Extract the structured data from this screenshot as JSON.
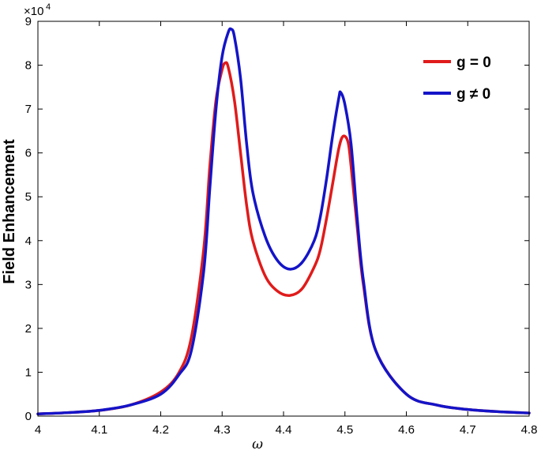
{
  "chart_data": {
    "type": "line",
    "title": "",
    "xlabel": "ω",
    "ylabel": "Field Enhancement",
    "y_exponent_base": "×10",
    "y_exponent_power": "4",
    "xlim": [
      4,
      4.8
    ],
    "ylim": [
      0,
      90000
    ],
    "x_ticks": [
      4,
      4.1,
      4.2,
      4.3,
      4.4,
      4.5,
      4.6,
      4.7,
      4.8
    ],
    "x_tick_labels": [
      "4",
      "4.1",
      "4.2",
      "4.3",
      "4.4",
      "4.5",
      "4.6",
      "4.7",
      "4.8"
    ],
    "y_ticks": [
      0,
      10000,
      20000,
      30000,
      40000,
      50000,
      60000,
      70000,
      80000,
      90000
    ],
    "y_tick_labels": [
      "0",
      "1",
      "2",
      "3",
      "4",
      "5",
      "6",
      "7",
      "8",
      "9"
    ],
    "grid": false,
    "legend_position": "top-right",
    "series": [
      {
        "name": "g = 0",
        "color": "#e01b1b",
        "x": [
          4.0,
          4.05,
          4.1,
          4.15,
          4.2,
          4.23,
          4.25,
          4.27,
          4.28,
          4.29,
          4.3,
          4.305,
          4.31,
          4.32,
          4.33,
          4.34,
          4.35,
          4.37,
          4.39,
          4.41,
          4.43,
          4.45,
          4.46,
          4.47,
          4.48,
          4.49,
          4.497,
          4.505,
          4.51,
          4.52,
          4.53,
          4.55,
          4.6,
          4.65,
          4.7,
          4.75,
          4.8
        ],
        "y": [
          500,
          800,
          1300,
          2500,
          5500,
          10000,
          18000,
          38000,
          57000,
          72000,
          79000,
          80500,
          79500,
          72000,
          60000,
          48000,
          40000,
          32000,
          28500,
          27500,
          29000,
          34000,
          38000,
          45000,
          53000,
          61000,
          63800,
          62500,
          57000,
          43000,
          30000,
          15000,
          5000,
          2500,
          1500,
          1000,
          700
        ]
      },
      {
        "name": "g ≠ 0",
        "color": "#1414c8",
        "x": [
          4.0,
          4.05,
          4.1,
          4.15,
          4.2,
          4.23,
          4.25,
          4.27,
          4.28,
          4.29,
          4.3,
          4.31,
          4.315,
          4.32,
          4.33,
          4.34,
          4.35,
          4.37,
          4.39,
          4.41,
          4.43,
          4.45,
          4.46,
          4.47,
          4.48,
          4.49,
          4.493,
          4.5,
          4.51,
          4.52,
          4.53,
          4.55,
          4.6,
          4.65,
          4.7,
          4.75,
          4.8
        ],
        "y": [
          500,
          800,
          1300,
          2500,
          5000,
          9500,
          15000,
          33000,
          52000,
          70000,
          82000,
          87500,
          88200,
          86500,
          77000,
          62000,
          51000,
          41000,
          35500,
          33500,
          35000,
          40000,
          45500,
          54000,
          64000,
          72500,
          73800,
          71000,
          62000,
          45000,
          31000,
          15000,
          5000,
          2500,
          1500,
          1000,
          700
        ]
      }
    ]
  }
}
